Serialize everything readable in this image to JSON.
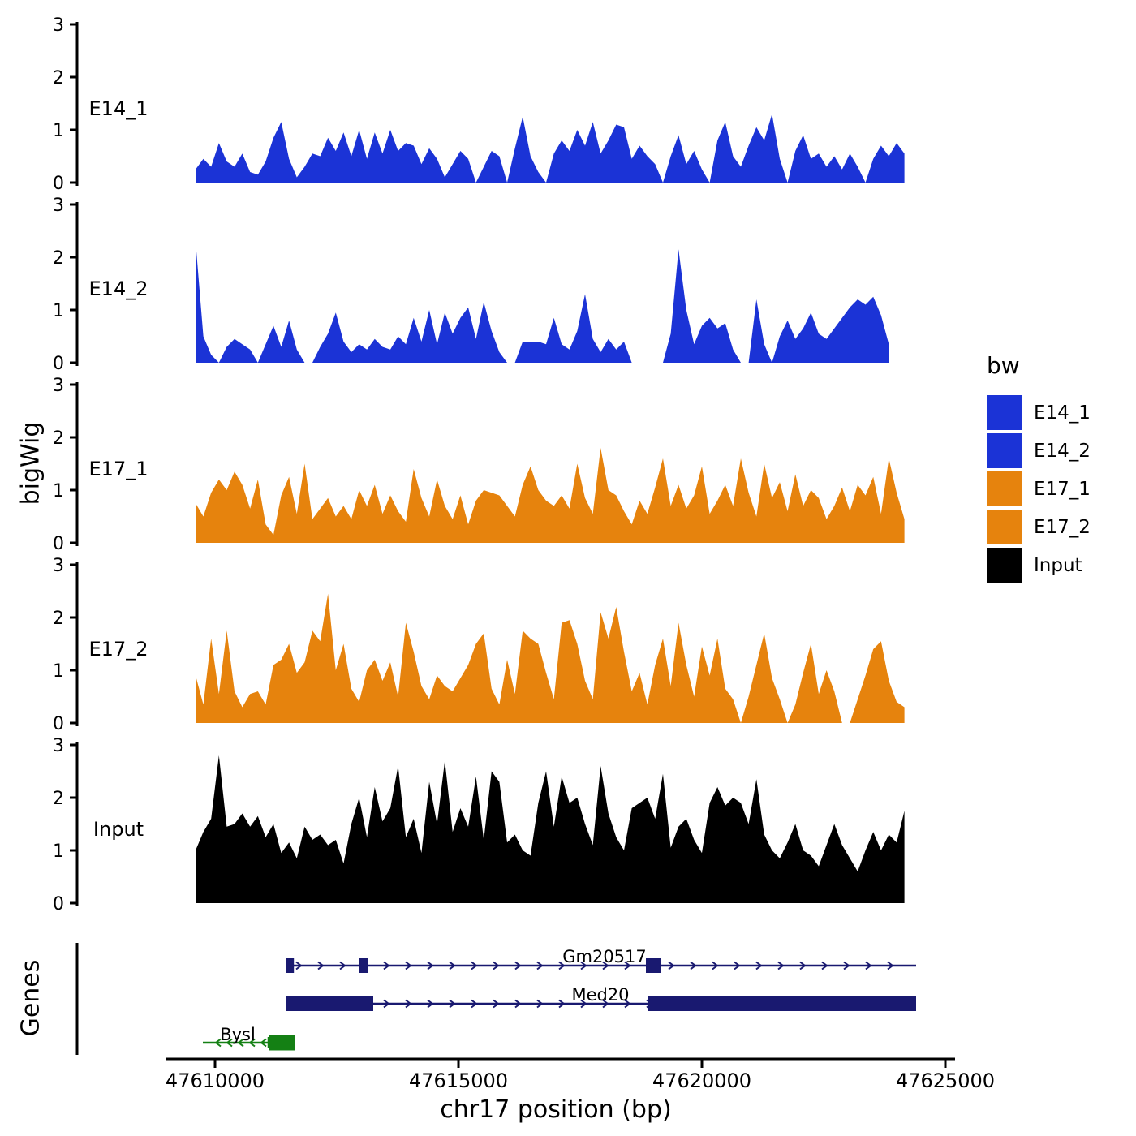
{
  "axes": {
    "x_label": "chr17 position (bp)",
    "x_ticks": [
      47610000,
      47615000,
      47620000,
      47625000
    ],
    "x_tick_labels": [
      "47610000",
      "47615000",
      "47620000",
      "47625000"
    ],
    "x_range": [
      47609000,
      47625200
    ],
    "y_label": "bigWig",
    "genes_label": "Genes",
    "y_ticks": [
      0,
      1,
      2,
      3
    ],
    "y_range": [
      0,
      3
    ],
    "grid": false
  },
  "legend": {
    "title": "bw",
    "entries": [
      {
        "label": "E14_1",
        "color": "#1B33D6"
      },
      {
        "label": "E14_2",
        "color": "#1B33D6"
      },
      {
        "label": "E17_1",
        "color": "#E6830D"
      },
      {
        "label": "E17_2",
        "color": "#E6830D"
      },
      {
        "label": "Input",
        "color": "#000000"
      }
    ]
  },
  "chart_data": {
    "type": "area",
    "title": "",
    "xlabel": "chr17 position (bp)",
    "ylabel": "bigWig",
    "ylim": [
      0,
      3
    ],
    "x_start": 47609600,
    "x_step": 160,
    "series": [
      {
        "name": "E14_1",
        "color": "#1B33D6",
        "values": [
          0.25,
          0.45,
          0.3,
          0.75,
          0.4,
          0.3,
          0.55,
          0.2,
          0.15,
          0.4,
          0.85,
          1.15,
          0.45,
          0.1,
          0.3,
          0.55,
          0.5,
          0.85,
          0.6,
          0.95,
          0.5,
          1.0,
          0.45,
          0.95,
          0.55,
          1.0,
          0.6,
          0.75,
          0.7,
          0.35,
          0.65,
          0.45,
          0.1,
          0.35,
          0.6,
          0.45,
          0,
          0.3,
          0.6,
          0.5,
          0,
          0.65,
          1.25,
          0.5,
          0.2,
          0,
          0.55,
          0.8,
          0.6,
          1.0,
          0.7,
          1.15,
          0.55,
          0.8,
          1.1,
          1.05,
          0.45,
          0.7,
          0.5,
          0.35,
          0,
          0.5,
          0.9,
          0.35,
          0.6,
          0.25,
          0,
          0.8,
          1.15,
          0.5,
          0.3,
          0.7,
          1.05,
          0.8,
          1.3,
          0.45,
          0,
          0.6,
          0.9,
          0.45,
          0.55,
          0.3,
          0.5,
          0.25,
          0.55,
          0.3,
          0,
          0.45,
          0.7,
          0.5,
          0.75,
          0.55
        ]
      },
      {
        "name": "E14_2",
        "color": "#1B33D6",
        "values": [
          2.3,
          0.5,
          0.15,
          0,
          0.3,
          0.45,
          0.35,
          0.25,
          0,
          0.35,
          0.7,
          0.3,
          0.8,
          0.25,
          0,
          0,
          0.3,
          0.55,
          0.95,
          0.4,
          0.2,
          0.35,
          0.25,
          0.45,
          0.3,
          0.25,
          0.5,
          0.35,
          0.85,
          0.4,
          1.0,
          0.35,
          0.95,
          0.55,
          0.85,
          1.05,
          0.45,
          1.15,
          0.6,
          0.2,
          0,
          0,
          0.4,
          0.4,
          0.4,
          0.35,
          0.85,
          0.35,
          0.25,
          0.6,
          1.3,
          0.45,
          0.2,
          0.45,
          0.25,
          0.4,
          0,
          0,
          0,
          0,
          0,
          0.55,
          2.15,
          1.0,
          0.35,
          0.7,
          0.85,
          0.65,
          0.75,
          0.25,
          0,
          0,
          1.2,
          0.35,
          0,
          0.5,
          0.8,
          0.45,
          0.65,
          0.95,
          0.55,
          0.45,
          0.65,
          0.85,
          1.05,
          1.2,
          1.1,
          1.25,
          0.9,
          0.35
        ]
      },
      {
        "name": "E17_1",
        "color": "#E6830D",
        "values": [
          0.75,
          0.5,
          0.95,
          1.2,
          1.0,
          1.35,
          1.1,
          0.65,
          1.2,
          0.35,
          0.15,
          0.9,
          1.25,
          0.55,
          1.5,
          0.45,
          0.65,
          0.85,
          0.5,
          0.7,
          0.45,
          1.0,
          0.7,
          1.1,
          0.55,
          0.9,
          0.6,
          0.4,
          1.4,
          0.85,
          0.5,
          1.2,
          0.7,
          0.45,
          0.9,
          0.35,
          0.8,
          1.0,
          0.95,
          0.9,
          0.7,
          0.5,
          1.1,
          1.45,
          1.0,
          0.8,
          0.7,
          0.9,
          0.65,
          1.5,
          0.85,
          0.55,
          1.8,
          1.0,
          0.9,
          0.6,
          0.35,
          0.8,
          0.55,
          1.05,
          1.6,
          0.7,
          1.1,
          0.65,
          0.9,
          1.45,
          0.55,
          0.8,
          1.1,
          0.7,
          1.6,
          0.95,
          0.5,
          1.5,
          0.85,
          1.15,
          0.6,
          1.3,
          0.7,
          1.0,
          0.85,
          0.45,
          0.7,
          1.05,
          0.6,
          1.1,
          0.9,
          1.25,
          0.55,
          1.6,
          0.95,
          0.45
        ]
      },
      {
        "name": "E17_2",
        "color": "#E6830D",
        "values": [
          0.9,
          0.35,
          1.6,
          0.55,
          1.75,
          0.6,
          0.3,
          0.55,
          0.6,
          0.35,
          1.1,
          1.2,
          1.5,
          0.95,
          1.15,
          1.75,
          1.55,
          2.45,
          1.0,
          1.5,
          0.65,
          0.4,
          1.0,
          1.2,
          0.8,
          1.15,
          0.5,
          1.9,
          1.35,
          0.7,
          0.45,
          0.9,
          0.7,
          0.6,
          0.85,
          1.1,
          1.5,
          1.7,
          0.65,
          0.35,
          1.2,
          0.55,
          1.75,
          1.6,
          1.5,
          0.95,
          0.45,
          1.9,
          1.95,
          1.5,
          0.8,
          0.45,
          2.1,
          1.6,
          2.2,
          1.35,
          0.6,
          0.95,
          0.35,
          1.1,
          1.6,
          0.7,
          1.9,
          1.1,
          0.5,
          1.45,
          0.9,
          1.6,
          0.65,
          0.45,
          0,
          0.5,
          1.1,
          1.7,
          0.85,
          0.45,
          0,
          0.35,
          0.95,
          1.5,
          0.55,
          1.0,
          0.6,
          0,
          0,
          0.45,
          0.9,
          1.4,
          1.55,
          0.8,
          0.4,
          0.3
        ]
      },
      {
        "name": "Input",
        "color": "#000000",
        "values": [
          1.0,
          1.35,
          1.6,
          2.8,
          1.45,
          1.5,
          1.7,
          1.45,
          1.65,
          1.25,
          1.5,
          0.95,
          1.15,
          0.85,
          1.45,
          1.2,
          1.3,
          1.1,
          1.2,
          0.75,
          1.5,
          2.0,
          1.25,
          2.2,
          1.55,
          1.8,
          2.6,
          1.25,
          1.6,
          0.95,
          2.3,
          1.5,
          2.7,
          1.35,
          1.8,
          1.45,
          2.4,
          1.2,
          2.5,
          2.3,
          1.15,
          1.3,
          1.0,
          0.9,
          1.9,
          2.5,
          1.45,
          2.4,
          1.9,
          2.0,
          1.5,
          1.1,
          2.6,
          1.7,
          1.25,
          1.0,
          1.8,
          1.9,
          2.0,
          1.6,
          2.45,
          1.05,
          1.45,
          1.6,
          1.2,
          0.95,
          1.9,
          2.2,
          1.85,
          2.0,
          1.9,
          1.5,
          2.35,
          1.3,
          1.0,
          0.85,
          1.15,
          1.5,
          1.0,
          0.9,
          0.7,
          1.1,
          1.5,
          1.1,
          0.85,
          0.6,
          1.0,
          1.35,
          1.0,
          1.3,
          1.15,
          1.75
        ]
      }
    ],
    "genes": [
      {
        "name": "Gm20517",
        "color": "#191970",
        "strand": "+",
        "line": [
          47611500,
          47624400
        ],
        "exons": [
          [
            47611450,
            47611620
          ],
          [
            47612950,
            47613150
          ],
          [
            47618850,
            47619150
          ]
        ],
        "exon_height": 18
      },
      {
        "name": "Med20",
        "color": "#191970",
        "strand": "+",
        "line": [
          47611500,
          47624400
        ],
        "exons": [
          [
            47611450,
            47613250
          ],
          [
            47618900,
            47624400
          ]
        ],
        "exon_height": 18
      },
      {
        "name": "Bysl",
        "color": "#148014",
        "strand": "-",
        "line": [
          47609750,
          47611100
        ],
        "exons": [
          [
            47611100,
            47611650
          ]
        ],
        "exon_height": 19
      }
    ]
  }
}
